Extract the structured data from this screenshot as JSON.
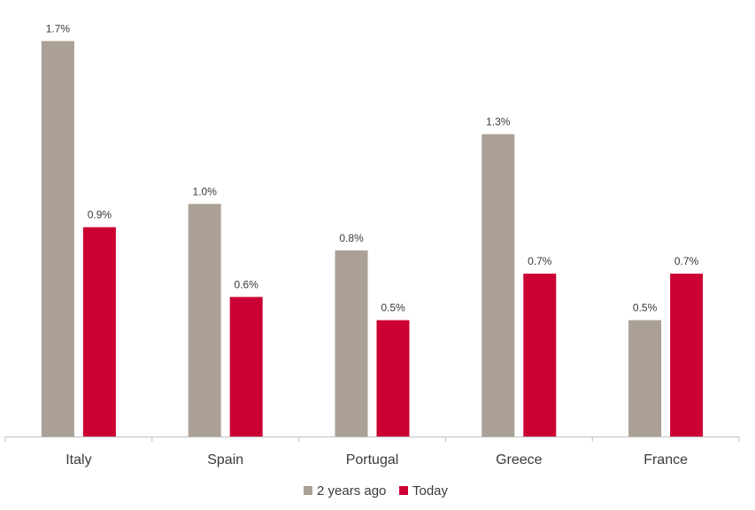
{
  "chart_data": {
    "type": "bar",
    "categories": [
      "Italy",
      "Spain",
      "Portugal",
      "Greece",
      "France"
    ],
    "series": [
      {
        "name": "2 years ago",
        "values": [
          1.7,
          1.0,
          0.8,
          1.3,
          0.5
        ],
        "labels": [
          "1.7%",
          "1.0%",
          "0.8%",
          "1.3%",
          "0.5%"
        ],
        "color": "#aaa095"
      },
      {
        "name": "Today",
        "values": [
          0.9,
          0.6,
          0.5,
          0.7,
          0.7
        ],
        "labels": [
          "0.9%",
          "0.6%",
          "0.5%",
          "0.7%",
          "0.7%"
        ],
        "color": "#cc0033"
      }
    ],
    "title": "",
    "xlabel": "",
    "ylabel": "",
    "ylim": [
      0,
      1.85
    ],
    "grid": false,
    "legend": "bottom-center",
    "axis_color": "#bfbfbf"
  }
}
